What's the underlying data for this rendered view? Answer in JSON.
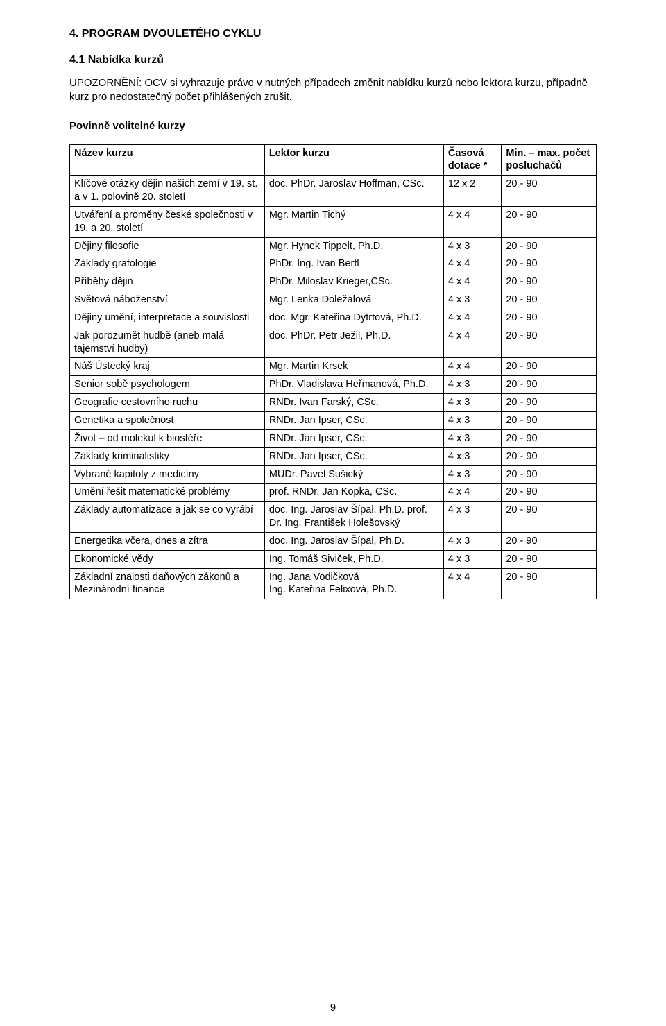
{
  "section_heading": "4. PROGRAM DVOULETÉHO CYKLU",
  "subsection_heading": "4.1 Nabídka kurzů",
  "notice_text": "UPOZORNĚNÍ: OCV si vyhrazuje právo v nutných případech změnit nabídku kurzů nebo lektora kurzu, případně kurz pro nedostatečný počet přihlášených zrušit.",
  "opt_courses_label": "Povinně volitelné kurzy",
  "table": {
    "headers": {
      "name": "Název kurzu",
      "lecturer": "Lektor kurzu",
      "dotace": "Časová dotace *",
      "minmax": "Min. – max. počet posluchačů"
    },
    "rows": [
      {
        "name": "Klíčové otázky dějin našich zemí v 19. st. a v 1. polovině 20. století",
        "lecturer": "doc. PhDr. Jaroslav Hoffman, CSc.",
        "dotace": "12 x 2",
        "minmax": "20 - 90"
      },
      {
        "name": "Utváření a proměny české společnosti v 19. a 20. století",
        "lecturer": "Mgr. Martin Tichý",
        "dotace": "4 x 4",
        "minmax": "20 - 90"
      },
      {
        "name": "Dějiny filosofie",
        "lecturer": "Mgr. Hynek Tippelt, Ph.D.",
        "dotace": "4 x 3",
        "minmax": "20 - 90"
      },
      {
        "name": "Základy grafologie",
        "lecturer": "PhDr. Ing. Ivan Bertl",
        "dotace": "4 x 4",
        "minmax": "20 - 90"
      },
      {
        "name": "Příběhy dějin",
        "lecturer": "PhDr. Miloslav Krieger,CSc.",
        "dotace": "4 x 4",
        "minmax": "20 - 90"
      },
      {
        "name": "Světová náboženství",
        "lecturer": "Mgr. Lenka Doležalová",
        "dotace": "4 x 3",
        "minmax": "20 - 90"
      },
      {
        "name": "Dějiny umění, interpretace a souvislosti",
        "lecturer": "doc. Mgr. Kateřina Dytrtová, Ph.D.",
        "dotace": "4 x 4",
        "minmax": "20 - 90"
      },
      {
        "name": "Jak porozumět hudbě (aneb malá tajemství hudby)",
        "lecturer": "doc. PhDr. Petr Ježil, Ph.D.",
        "dotace": "4 x 4",
        "minmax": "20 - 90"
      },
      {
        "name": "Náš Ústecký kraj",
        "lecturer": "Mgr. Martin Krsek",
        "dotace": "4 x 4",
        "minmax": "20 - 90"
      },
      {
        "name": "Senior sobě psychologem",
        "lecturer": "PhDr. Vladislava Heřmanová, Ph.D.",
        "dotace": "4 x 3",
        "minmax": "20 - 90"
      },
      {
        "name": "Geografie cestovního ruchu",
        "lecturer": "RNDr. Ivan Farský, CSc.",
        "dotace": "4 x 3",
        "minmax": "20 - 90"
      },
      {
        "name": "Genetika a společnost",
        "lecturer": "RNDr. Jan  Ipser, CSc.",
        "dotace": "4 x 3",
        "minmax": "20 - 90"
      },
      {
        "name": "Život – od molekul k biosféře",
        "lecturer": "RNDr. Jan  Ipser, CSc.",
        "dotace": "4 x 3",
        "minmax": "20 - 90"
      },
      {
        "name": "Základy kriminalistiky",
        "lecturer": "RNDr. Jan  Ipser, CSc.",
        "dotace": "4 x 3",
        "minmax": "20 - 90"
      },
      {
        "name": "Vybrané kapitoly z medicíny",
        "lecturer": "MUDr. Pavel Sušický",
        "dotace": "4 x 3",
        "minmax": "20 - 90"
      },
      {
        "name": "Umění řešit matematické problémy",
        "lecturer": "prof. RNDr. Jan Kopka, CSc.",
        "dotace": "4 x 4",
        "minmax": "20 - 90"
      },
      {
        "name": "Základy automatizace a jak se co vyrábí",
        "lecturer": "doc. Ing. Jaroslav Šípal, Ph.D. prof. Dr. Ing. František Holešovský",
        "dotace": "4 x 3",
        "minmax": "20 - 90"
      },
      {
        "name": "Energetika včera, dnes a zítra",
        "lecturer": "doc. Ing. Jaroslav Šípal, Ph.D.",
        "dotace": "4 x 3",
        "minmax": "20 - 90"
      },
      {
        "name": "Ekonomické vědy",
        "lecturer": "Ing. Tomáš Siviček, Ph.D.",
        "dotace": "4 x 3",
        "minmax": "20 - 90"
      },
      {
        "name": "Základní znalosti daňových zákonů a Mezinárodní finance",
        "lecturer": "Ing. Jana Vodičková\nIng. Kateřina Felixová, Ph.D.",
        "dotace": "4 x 4",
        "minmax": "20 - 90"
      }
    ]
  },
  "page_number": "9"
}
